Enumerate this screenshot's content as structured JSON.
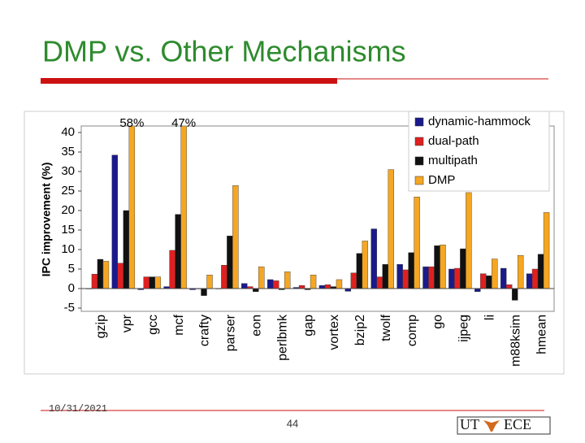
{
  "slide": {
    "title": "DMP vs. Other Mechanisms",
    "date": "10/31/2021",
    "page": "44",
    "logo": [
      "UT",
      "ECE"
    ]
  },
  "chart_data": {
    "type": "bar",
    "ylabel": "IPC improvement (%)",
    "categories": [
      "gzip",
      "vpr",
      "gcc",
      "mcf",
      "crafty",
      "parser",
      "eon",
      "perlbmk",
      "gap",
      "vortex",
      "bzip2",
      "twolf",
      "comp",
      "go",
      "ijpeg",
      "li",
      "m88ksim",
      "hmean"
    ],
    "series": [
      {
        "name": "dynamic-hammock",
        "color": "#1a1a8c",
        "values": [
          0,
          34.2,
          -0.3,
          0.5,
          -0.3,
          0,
          1.3,
          2.3,
          0.3,
          0.8,
          -0.7,
          15.3,
          6.2,
          5.6,
          5,
          -0.8,
          5.2,
          3.8
        ]
      },
      {
        "name": "dual-path",
        "color": "#e02020",
        "values": [
          3.7,
          6.5,
          3,
          9.8,
          0,
          6,
          0.5,
          2,
          0.8,
          1,
          4,
          3,
          4.8,
          5.6,
          5.2,
          3.8,
          1,
          5
        ]
      },
      {
        "name": "multipath",
        "color": "#111111",
        "values": [
          7.5,
          20,
          3,
          19,
          -1.8,
          13.5,
          -0.8,
          -0.3,
          -0.3,
          0.5,
          9,
          6.2,
          9.2,
          11,
          10.2,
          3.3,
          -3,
          8.8
        ]
      },
      {
        "name": "DMP",
        "color": "#f5a623",
        "values": [
          7,
          58,
          3,
          47,
          3.5,
          26.4,
          5.6,
          4.3,
          3.5,
          2.3,
          12.2,
          30.5,
          23.5,
          11.2,
          24.6,
          7.6,
          8.5,
          19.5
        ],
        "value_labels": [
          null,
          "58%",
          null,
          "47%",
          null,
          null,
          null,
          null,
          null,
          null,
          null,
          null,
          null,
          null,
          null,
          null,
          null,
          null
        ]
      }
    ],
    "ylim": [
      -5,
      40
    ],
    "yticks": [
      -5,
      0,
      5,
      10,
      15,
      20,
      25,
      30,
      35,
      40
    ],
    "grid": false,
    "legend": "top-right"
  }
}
